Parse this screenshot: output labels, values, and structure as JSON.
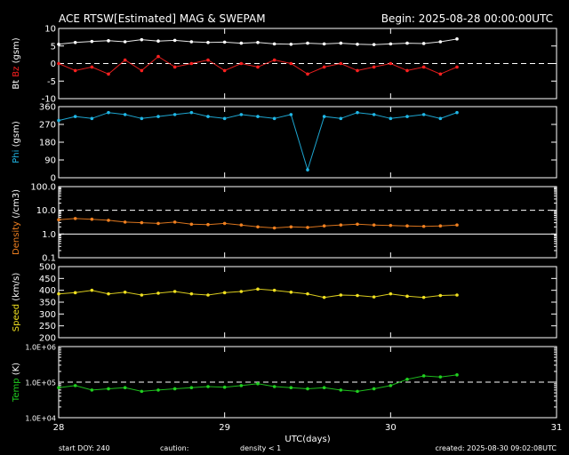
{
  "header": {
    "title": "ACE RTSW[Estimated] MAG & SWEPAM",
    "begin": "Begin: 2025-08-28 00:00:00UTC"
  },
  "footer": {
    "start_doy": "start DOY: 240",
    "caution": "caution:",
    "caution_note": "density < 1",
    "created": "created: 2025-08-30 09:02:08UTC"
  },
  "colors": {
    "bt": "#ffffff",
    "bz": "#ff2020",
    "phi": "#20b8e8",
    "density": "#f08020",
    "speed": "#f0e020",
    "temp": "#20d020",
    "axis": "#ffffff",
    "background": "#000000"
  },
  "chart_data": {
    "type": "scatter",
    "x_label": "UTC(days)",
    "x_ticks": [
      "28",
      "29",
      "30",
      "31"
    ],
    "x_range": [
      28,
      31
    ],
    "panels": [
      {
        "id": "mag",
        "ylabel_parts": [
          {
            "text": "Bt",
            "color": "#ffffff"
          },
          {
            "text": " ",
            "color": "#ffffff"
          },
          {
            "text": "Bz",
            "color": "#ff2020"
          },
          {
            "text": " (gsm)",
            "color": "#ffffff"
          }
        ],
        "y_range": [
          -10,
          10
        ],
        "scale": "linear",
        "y_ticks": [
          "10",
          "5",
          "0",
          "-5",
          "-10"
        ],
        "dashed_at": [
          0
        ],
        "series": [
          {
            "name": "Bt",
            "color": "#ffffff",
            "x": [
              28.0,
              28.1,
              28.2,
              28.3,
              28.4,
              28.5,
              28.6,
              28.7,
              28.8,
              28.9,
              29.0,
              29.1,
              29.2,
              29.3,
              29.4,
              29.5,
              29.6,
              29.7,
              29.8,
              29.9,
              30.0,
              30.1,
              30.2,
              30.3,
              30.4
            ],
            "y": [
              5.5,
              6.0,
              6.3,
              6.5,
              6.2,
              6.8,
              6.4,
              6.6,
              6.2,
              6.0,
              6.1,
              5.8,
              6.0,
              5.6,
              5.5,
              5.8,
              5.6,
              5.8,
              5.5,
              5.4,
              5.6,
              5.8,
              5.7,
              6.2,
              7.0
            ]
          },
          {
            "name": "Bz",
            "color": "#ff2020",
            "x": [
              28.0,
              28.1,
              28.2,
              28.3,
              28.4,
              28.5,
              28.6,
              28.7,
              28.8,
              28.9,
              29.0,
              29.1,
              29.2,
              29.3,
              29.4,
              29.5,
              29.6,
              29.7,
              29.8,
              29.9,
              30.0,
              30.1,
              30.2,
              30.3,
              30.4
            ],
            "y": [
              0,
              -2,
              -1,
              -3,
              1,
              -2,
              2,
              -1,
              0,
              1,
              -2,
              0,
              -1,
              1,
              0,
              -3,
              -1,
              0,
              -2,
              -1,
              0,
              -2,
              -1,
              -3,
              -1
            ]
          }
        ]
      },
      {
        "id": "phi",
        "ylabel_parts": [
          {
            "text": "Phi",
            "color": "#20b8e8"
          },
          {
            "text": " (gsm)",
            "color": "#ffffff"
          }
        ],
        "y_range": [
          0,
          360
        ],
        "scale": "linear",
        "y_ticks": [
          "360",
          "270",
          "180",
          "90",
          "0"
        ],
        "series": [
          {
            "name": "Phi",
            "color": "#20b8e8",
            "x": [
              28.0,
              28.1,
              28.2,
              28.3,
              28.4,
              28.5,
              28.6,
              28.7,
              28.8,
              28.9,
              29.0,
              29.1,
              29.2,
              29.3,
              29.4,
              29.5,
              29.6,
              29.7,
              29.8,
              29.9,
              30.0,
              30.1,
              30.2,
              30.3,
              30.4
            ],
            "y": [
              290,
              310,
              300,
              330,
              320,
              300,
              310,
              320,
              330,
              310,
              300,
              320,
              310,
              300,
              320,
              40,
              310,
              300,
              330,
              320,
              300,
              310,
              320,
              300,
              330
            ]
          }
        ]
      },
      {
        "id": "density",
        "ylabel_parts": [
          {
            "text": "Density",
            "color": "#f08020"
          },
          {
            "text": " (/cm3)",
            "color": "#ffffff"
          }
        ],
        "y_range": [
          0.1,
          100
        ],
        "scale": "log",
        "y_ticks": [
          "100.0",
          "10.0",
          "1.0",
          "0.1"
        ],
        "tick_values": [
          100,
          10,
          1,
          0.1
        ],
        "dashed_at": [
          10
        ],
        "solid_at": [
          1
        ],
        "series": [
          {
            "name": "Density",
            "color": "#f08020",
            "x": [
              28.0,
              28.1,
              28.2,
              28.3,
              28.4,
              28.5,
              28.6,
              28.7,
              28.8,
              28.9,
              29.0,
              29.1,
              29.2,
              29.3,
              29.4,
              29.5,
              29.6,
              29.7,
              29.8,
              29.9,
              30.0,
              30.1,
              30.2,
              30.3,
              30.4
            ],
            "y": [
              4.0,
              4.5,
              4.2,
              3.8,
              3.2,
              3.0,
              2.8,
              3.2,
              2.6,
              2.5,
              2.8,
              2.4,
              2.0,
              1.8,
              2.0,
              1.9,
              2.2,
              2.4,
              2.6,
              2.4,
              2.3,
              2.2,
              2.1,
              2.2,
              2.4
            ]
          }
        ]
      },
      {
        "id": "speed",
        "ylabel_parts": [
          {
            "text": "Speed",
            "color": "#f0e020"
          },
          {
            "text": " (km/s)",
            "color": "#ffffff"
          }
        ],
        "y_range": [
          200,
          500
        ],
        "scale": "linear",
        "y_ticks": [
          "500",
          "450",
          "400",
          "350",
          "300",
          "250",
          "200"
        ],
        "series": [
          {
            "name": "Speed",
            "color": "#f0e020",
            "x": [
              28.0,
              28.1,
              28.2,
              28.3,
              28.4,
              28.5,
              28.6,
              28.7,
              28.8,
              28.9,
              29.0,
              29.1,
              29.2,
              29.3,
              29.4,
              29.5,
              29.6,
              29.7,
              29.8,
              29.9,
              30.0,
              30.1,
              30.2,
              30.3,
              30.4
            ],
            "y": [
              385,
              390,
              400,
              385,
              392,
              380,
              388,
              395,
              385,
              380,
              390,
              395,
              405,
              400,
              392,
              385,
              370,
              380,
              378,
              372,
              385,
              375,
              370,
              378,
              380
            ]
          }
        ]
      },
      {
        "id": "temp",
        "ylabel_parts": [
          {
            "text": "Temp",
            "color": "#20d020"
          },
          {
            "text": " (K)",
            "color": "#ffffff"
          }
        ],
        "y_range": [
          10000,
          1000000
        ],
        "scale": "log",
        "y_ticks": [
          "1.0E+06",
          "1.0E+05",
          "1.0E+04"
        ],
        "tick_values": [
          1000000,
          100000,
          10000
        ],
        "dashed_at": [
          100000
        ],
        "series": [
          {
            "name": "Temp",
            "color": "#20d020",
            "x": [
              28.0,
              28.1,
              28.2,
              28.3,
              28.4,
              28.5,
              28.6,
              28.7,
              28.8,
              28.9,
              29.0,
              29.1,
              29.2,
              29.3,
              29.4,
              29.5,
              29.6,
              29.7,
              29.8,
              29.9,
              30.0,
              30.1,
              30.2,
              30.3,
              30.4
            ],
            "y": [
              70000,
              80000,
              60000,
              65000,
              70000,
              55000,
              60000,
              65000,
              70000,
              75000,
              72000,
              80000,
              90000,
              75000,
              70000,
              65000,
              70000,
              60000,
              55000,
              65000,
              80000,
              120000,
              150000,
              140000,
              160000
            ]
          }
        ]
      }
    ]
  }
}
